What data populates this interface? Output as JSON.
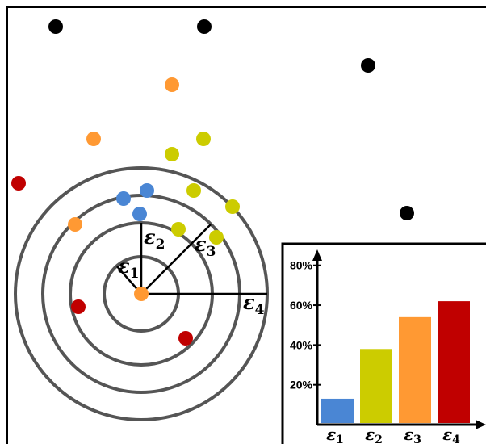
{
  "diagram": {
    "radius_labels": [
      {
        "base": "ε",
        "sub": "1"
      },
      {
        "base": "ε",
        "sub": "2"
      },
      {
        "base": "ε",
        "sub": "3"
      },
      {
        "base": "ε",
        "sub": "4"
      }
    ],
    "colors": {
      "black": "#000000",
      "orange": "#FF9933",
      "yellow": "#CCCC00",
      "blue": "#4A86D4",
      "red": "#C00000",
      "ring": "#555555"
    },
    "points": [
      {
        "color": "black"
      },
      {
        "color": "black"
      },
      {
        "color": "black"
      },
      {
        "color": "black"
      },
      {
        "color": "orange"
      },
      {
        "color": "orange"
      },
      {
        "color": "orange"
      },
      {
        "color": "orange"
      },
      {
        "color": "yellow"
      },
      {
        "color": "yellow"
      },
      {
        "color": "yellow"
      },
      {
        "color": "yellow"
      },
      {
        "color": "yellow"
      },
      {
        "color": "yellow"
      },
      {
        "color": "blue"
      },
      {
        "color": "blue"
      },
      {
        "color": "blue"
      },
      {
        "color": "red"
      },
      {
        "color": "red"
      },
      {
        "color": "red"
      }
    ]
  },
  "chart_data": {
    "type": "bar",
    "categories": [
      "ε1",
      "ε2",
      "ε3",
      "ε4"
    ],
    "category_labels": [
      {
        "base": "ε",
        "sub": "1"
      },
      {
        "base": "ε",
        "sub": "2"
      },
      {
        "base": "ε",
        "sub": "3"
      },
      {
        "base": "ε",
        "sub": "4"
      }
    ],
    "values": [
      13,
      38,
      54,
      62
    ],
    "colors": [
      "#4A86D4",
      "#CCCC00",
      "#FF9933",
      "#C00000"
    ],
    "yticks": [
      "20%",
      "40%",
      "60%",
      "80%"
    ],
    "ytick_values": [
      20,
      40,
      60,
      80
    ],
    "ylim": [
      0,
      88
    ],
    "title": "",
    "xlabel": "",
    "ylabel": "",
    "grid": false
  }
}
